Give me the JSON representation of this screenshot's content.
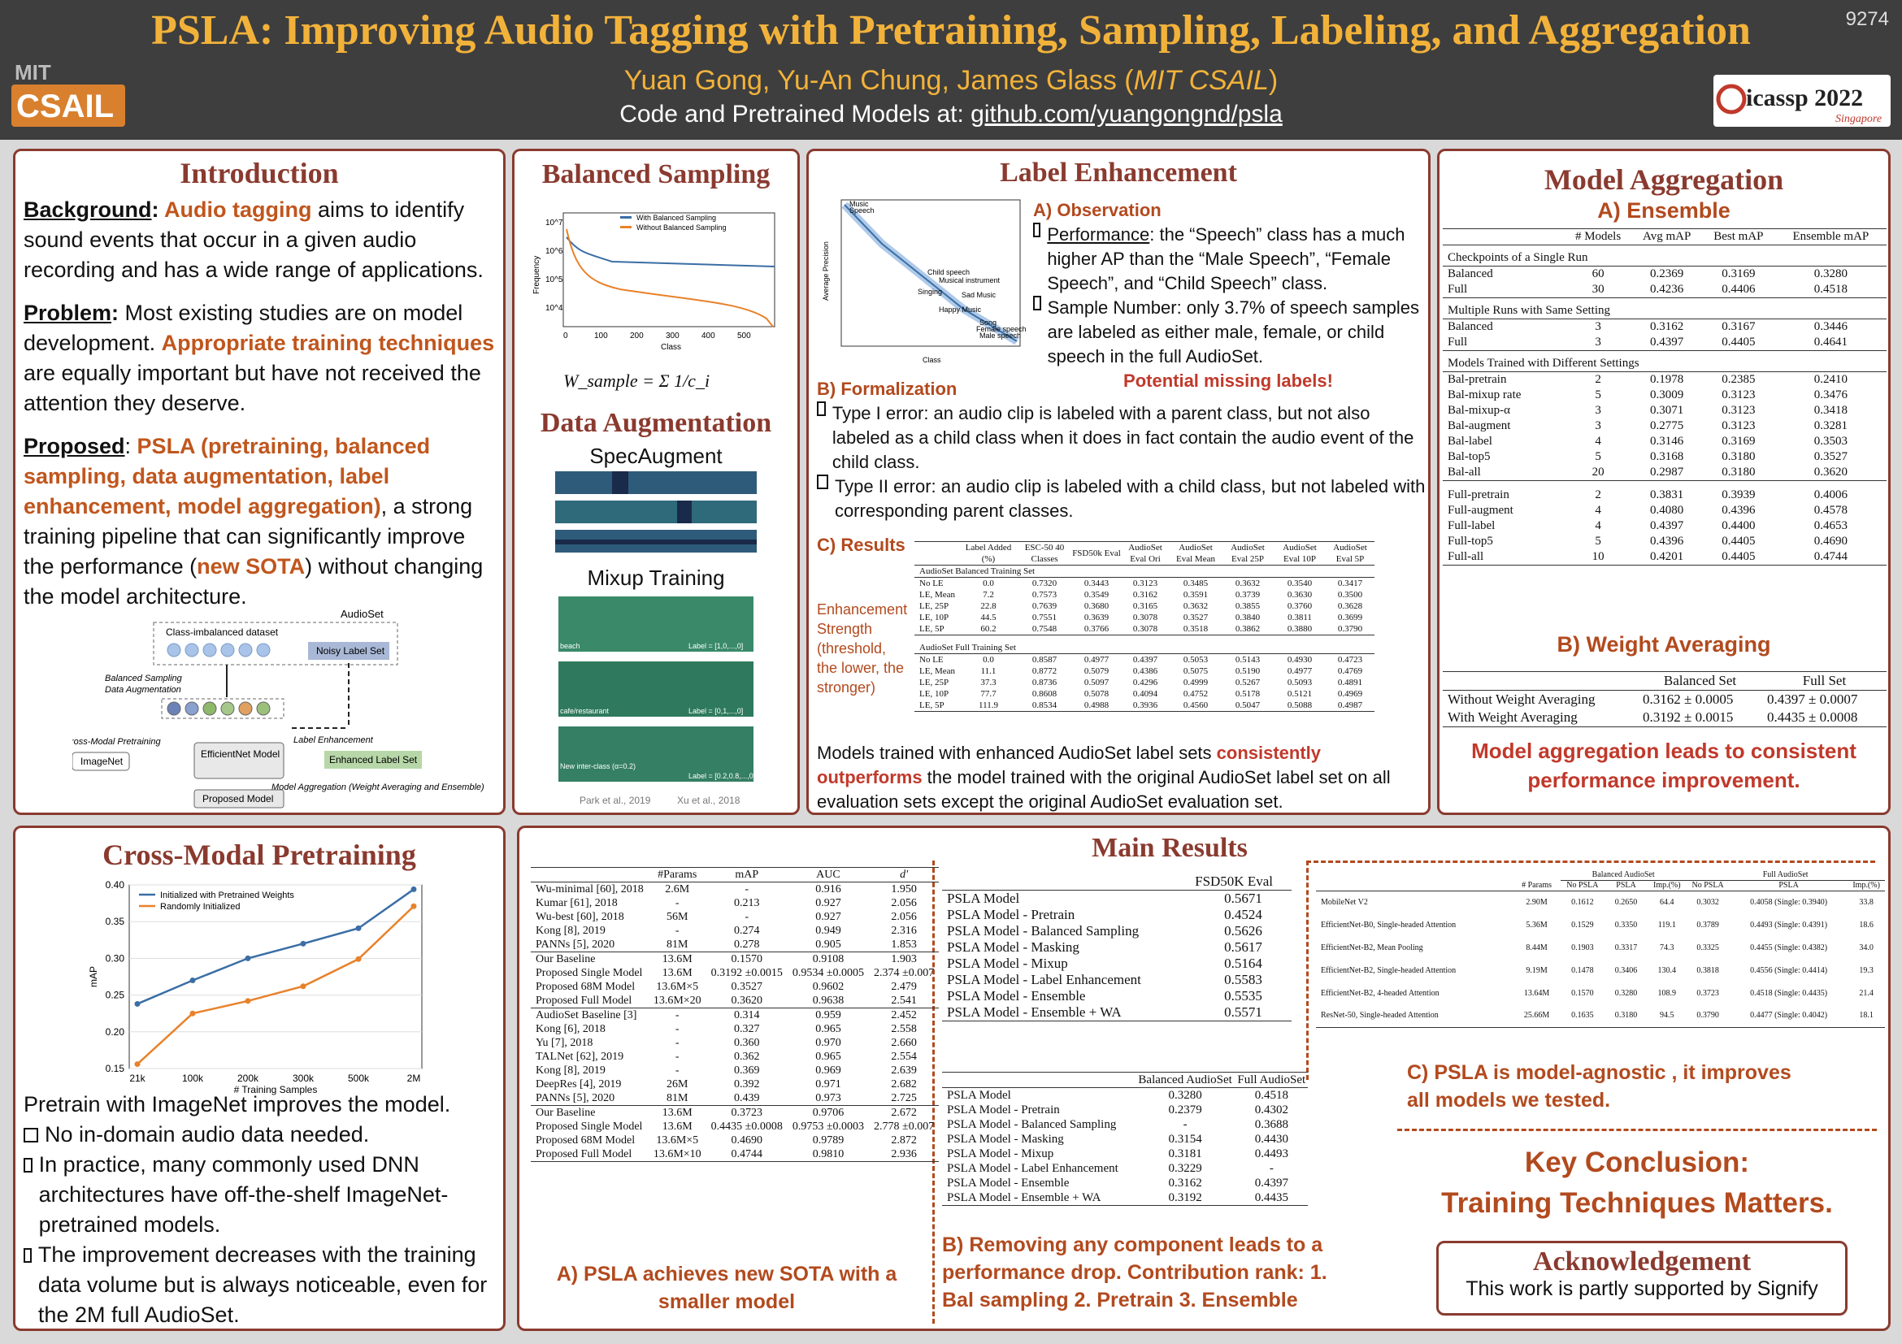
{
  "header": {
    "title": "PSLA: Improving Audio Tagging with Pretraining, Sampling, Labeling, and Aggregation",
    "authors": "Yuan Gong, Yu-An Chung, James Glass (",
    "affil": "MIT CSAIL",
    "authors_end": ")",
    "code_prefix": "Code and Pretrained Models at: ",
    "code_link": "github.com/yuangongnd/psla",
    "poster_number": "9274",
    "mit_logo": "MIT CSAIL",
    "conf_logo": "icassp 2022",
    "conf_city": "Singapore"
  },
  "intro": {
    "heading": "Introduction",
    "bg_label": "Background",
    "bg_hl": "Audio tagging",
    "bg_text": " aims to identify sound events that occur in a given audio recording and has a wide range of applications.",
    "prob_label": "Problem",
    "prob_text1": "Most existing studies are on model development. ",
    "prob_hl": "Appropriate training techniques",
    "prob_text2": " are equally important but have not received the attention they deserve.",
    "prop_label": "Proposed",
    "prop_hl": "PSLA (pretraining, balanced sampling, data augmentation, label enhancement, model aggregation)",
    "prop_text1": ", a strong training pipeline that can significantly improve the performance (",
    "prop_hl2": "new SOTA",
    "prop_text2": ") without changing the model architecture.",
    "diagram": {
      "audioset": "AudioSet",
      "class_imb": "Class-imbalanced dataset",
      "noisy": "Noisy Label Set",
      "bal_samp": "Balanced Sampling",
      "data_aug": "Data Augmentation",
      "cross_modal": "Cross-Modal Pretraining",
      "imagenet": "ImageNet",
      "effnet": "EfficientNet Model",
      "label_enh": "Label Enhancement",
      "enh_set": "Enhanced Label Set",
      "model_agg": "Model Aggregation (Weight Averaging and Ensemble)",
      "proposed": "Proposed Model"
    }
  },
  "balanced": {
    "heading": "Balanced Sampling",
    "legend_with": "With Balanced Sampling",
    "legend_without": "Without Balanced Sampling",
    "xlabel": "Class",
    "ylabel": "Frequency",
    "formula": "W_sample = Σ 1/c_i",
    "aug_heading": "Data Augmentation",
    "specaug": "SpecAugment",
    "mixup": "Mixup Training",
    "spec_labels": [
      "beach",
      "cafe/restaurant",
      "New inter-class (α=0.2)"
    ],
    "spec_values": [
      "Label = [1,0,...,0]",
      "Label = [0,1,...,0]",
      "Label = [0.2,0.8,...,0]"
    ],
    "cite1": "Park et al., 2019",
    "cite2": "Xu et al., 2018",
    "xticks": [
      "0",
      "100",
      "200",
      "300",
      "400",
      "500"
    ],
    "yticks": [
      "10^7",
      "10^6",
      "10^5",
      "10^4"
    ]
  },
  "label": {
    "heading": "Label Enhancement",
    "obs": "A) Observation",
    "perf_label": "Performance",
    "perf_text": ": the “Speech” class has a much higher AP than the “Male Speech”, “Female Speech”, and “Child Speech” class.",
    "samp_text": "Sample Number: only 3.7% of speech samples are labeled as either male, female, or child speech in the full AudioSet.",
    "missing": "Potential missing labels!",
    "form": "B) Formalization",
    "type1": "Type I error: an audio clip is labeled with a parent class, but not also labeled as a child class when it does in fact contain the audio event of the child class.",
    "type2": "Type II error: an audio clip is labeled with a child class, but not labeled with corresponding parent classes.",
    "results": "C) Results",
    "strength": "Enhancement Strength (threshold, the lower, the stronger)",
    "conclusion_a": "Models trained with enhanced AudioSet label sets ",
    "conclusion_hl": "consistently outperforms",
    "conclusion_b": " the model trained with the original AudioSet label set on all evaluation sets except the original AudioSet evaluation set.",
    "scatter_labels": [
      "Music",
      "Speech",
      "Child speech",
      "Musical instrument",
      "Singing",
      "Sad Music",
      "Happy Music",
      "Song",
      "Female speech",
      "Male speech"
    ],
    "scatter_ylabel": "Average Precision",
    "scatter_xlabel": "Class",
    "table_headers": [
      "Label Added (%)",
      "ESC-50 40 Classes",
      "FSD50k Eval",
      "AudioSet Eval Ori",
      "AudioSet Eval Mean",
      "AudioSet Eval 25P",
      "AudioSet Eval 10P",
      "AudioSet Eval 5P"
    ],
    "bal_title": "AudioSet Balanced Training Set",
    "full_title": "AudioSet Full Training Set",
    "bal_rows": [
      [
        "No LE",
        "0.0",
        "0.7320",
        "0.3443",
        "0.3123",
        "0.3485",
        "0.3632",
        "0.3540",
        "0.3417"
      ],
      [
        "LE, Mean",
        "7.2",
        "0.7573",
        "0.3549",
        "0.3162",
        "0.3591",
        "0.3739",
        "0.3630",
        "0.3500"
      ],
      [
        "LE, 25P",
        "22.8",
        "0.7639",
        "0.3680",
        "0.3165",
        "0.3632",
        "0.3855",
        "0.3760",
        "0.3628"
      ],
      [
        "LE, 10P",
        "44.5",
        "0.7551",
        "0.3639",
        "0.3078",
        "0.3527",
        "0.3840",
        "0.3811",
        "0.3699"
      ],
      [
        "LE, 5P",
        "60.2",
        "0.7548",
        "0.3766",
        "0.3078",
        "0.3518",
        "0.3862",
        "0.3880",
        "0.3790"
      ]
    ],
    "full_rows": [
      [
        "No LE",
        "0.0",
        "0.8587",
        "0.4977",
        "0.4397",
        "0.5053",
        "0.5143",
        "0.4930",
        "0.4723"
      ],
      [
        "LE, Mean",
        "11.1",
        "0.8772",
        "0.5079",
        "0.4386",
        "0.5075",
        "0.5190",
        "0.4977",
        "0.4769"
      ],
      [
        "LE, 25P",
        "37.3",
        "0.8736",
        "0.5097",
        "0.4296",
        "0.4999",
        "0.5267",
        "0.5093",
        "0.4891"
      ],
      [
        "LE, 10P",
        "77.7",
        "0.8608",
        "0.5078",
        "0.4094",
        "0.4752",
        "0.5178",
        "0.5121",
        "0.4969"
      ],
      [
        "LE, 5P",
        "111.9",
        "0.8534",
        "0.4988",
        "0.3936",
        "0.4560",
        "0.5047",
        "0.5088",
        "0.4987"
      ]
    ]
  },
  "agg": {
    "heading": "Model Aggregation",
    "ens": "A) Ensemble",
    "cols": [
      "# Models",
      "Avg mAP",
      "Best mAP",
      "Ensemble mAP"
    ],
    "g1": "Checkpoints of a Single Run",
    "r1": [
      [
        "Balanced",
        "60",
        "0.2369",
        "0.3169",
        "0.3280"
      ],
      [
        "Full",
        "30",
        "0.4236",
        "0.4406",
        "0.4518"
      ]
    ],
    "g2": "Multiple Runs with Same Setting",
    "r2": [
      [
        "Balanced",
        "3",
        "0.3162",
        "0.3167",
        "0.3446"
      ],
      [
        "Full",
        "3",
        "0.4397",
        "0.4405",
        "0.4641"
      ]
    ],
    "g3": "Models Trained with Different Settings",
    "r3": [
      [
        "Bal-pretrain",
        "2",
        "0.1978",
        "0.2385",
        "0.2410"
      ],
      [
        "Bal-mixup rate",
        "5",
        "0.3009",
        "0.3123",
        "0.3476"
      ],
      [
        "Bal-mixup-α",
        "3",
        "0.3071",
        "0.3123",
        "0.3418"
      ],
      [
        "Bal-augment",
        "3",
        "0.2775",
        "0.3123",
        "0.3281"
      ],
      [
        "Bal-label",
        "4",
        "0.3146",
        "0.3169",
        "0.3503"
      ],
      [
        "Bal-top5",
        "5",
        "0.3168",
        "0.3180",
        "0.3527"
      ],
      [
        "Bal-all",
        "20",
        "0.2987",
        "0.3180",
        "0.3620"
      ]
    ],
    "r4": [
      [
        "Full-pretrain",
        "2",
        "0.3831",
        "0.3939",
        "0.4006"
      ],
      [
        "Full-augment",
        "4",
        "0.4080",
        "0.4396",
        "0.4578"
      ],
      [
        "Full-label",
        "4",
        "0.4397",
        "0.4400",
        "0.4653"
      ],
      [
        "Full-top5",
        "5",
        "0.4396",
        "0.4405",
        "0.4690"
      ],
      [
        "Full-all",
        "10",
        "0.4201",
        "0.4405",
        "0.4744"
      ]
    ],
    "wa": "B) Weight Averaging",
    "wa_cols": [
      "Balanced Set",
      "Full Set"
    ],
    "wa_rows": [
      [
        "Without Weight Averaging",
        "0.3162 ± 0.0005",
        "0.4397 ± 0.0007"
      ],
      [
        "With Weight Averaging",
        "0.3192 ± 0.0015",
        "0.4435 ± 0.0008"
      ]
    ],
    "conclusion": "Model aggregation leads to consistent performance improvement."
  },
  "cross": {
    "heading": "Cross-Modal Pretraining",
    "legend_a": "Initialized with Pretrained Weights",
    "legend_b": "Randomly Initialized",
    "xlabel": "# Training Samples",
    "ylabel": "mAP",
    "intro": "Pretrain with ImageNet improves the model.",
    "p1": "No in-domain audio data needed.",
    "p2": "In practice, many commonly used DNN architectures have off-the-shelf ImageNet-pretrained models.",
    "p3": "The improvement decreases with the training data volume but is always noticeable, even for the 2M full AudioSet."
  },
  "chart_data": {
    "type": "line",
    "title": "",
    "xlabel": "# Training Samples",
    "ylabel": "mAP",
    "categories": [
      "21k",
      "100k",
      "200k",
      "300k",
      "500k",
      "2M"
    ],
    "ylim": [
      0.15,
      0.4
    ],
    "yticks": [
      "0.15",
      "0.20",
      "0.25",
      "0.30",
      "0.35",
      "0.40"
    ],
    "series": [
      {
        "name": "Initialized with Pretrained Weights",
        "color": "#3a6ea5",
        "values": [
          0.238,
          0.27,
          0.3,
          0.32,
          0.341,
          0.394
        ]
      },
      {
        "name": "Randomly Initialized",
        "color": "#e8822a",
        "values": [
          0.156,
          0.225,
          0.242,
          0.262,
          0.299,
          0.371
        ]
      }
    ]
  },
  "main": {
    "heading": "Main Results",
    "a_cols": [
      "#Params",
      "mAP",
      "AUC",
      "d'"
    ],
    "a_g1": [
      [
        "Wu-minimal [60], 2018",
        "2.6M",
        "-",
        "0.916",
        "1.950"
      ],
      [
        "Kumar [61], 2018",
        "-",
        "0.213",
        "0.927",
        "2.056"
      ],
      [
        "Wu-best [60], 2018",
        "56M",
        "-",
        "0.927",
        "2.056"
      ],
      [
        "Kong [8], 2019",
        "-",
        "0.274",
        "0.949",
        "2.316"
      ],
      [
        "PANNs [5], 2020",
        "81M",
        "0.278",
        "0.905",
        "1.853"
      ]
    ],
    "a_g2": [
      [
        "Our Baseline",
        "13.6M",
        "0.1570",
        "0.9108",
        "1.903"
      ],
      [
        "Proposed Single Model",
        "13.6M",
        "0.3192 ±0.0015",
        "0.9534 ±0.0005",
        "2.374 ±0.007"
      ],
      [
        "Proposed 68M Model",
        "13.6M×5",
        "0.3527",
        "0.9602",
        "2.479"
      ],
      [
        "Proposed Full Model",
        "13.6M×20",
        "0.3620",
        "0.9638",
        "2.541"
      ]
    ],
    "a_g3": [
      [
        "AudioSet Baseline [3]",
        "-",
        "0.314",
        "0.959",
        "2.452"
      ],
      [
        "Kong [6], 2018",
        "-",
        "0.327",
        "0.965",
        "2.558"
      ],
      [
        "Yu [7], 2018",
        "-",
        "0.360",
        "0.970",
        "2.660"
      ],
      [
        "TALNet [62], 2019",
        "-",
        "0.362",
        "0.965",
        "2.554"
      ],
      [
        "Kong [8], 2019",
        "-",
        "0.369",
        "0.969",
        "2.639"
      ],
      [
        "DeepRes [4], 2019",
        "26M",
        "0.392",
        "0.971",
        "2.682"
      ],
      [
        "PANNs [5], 2020",
        "81M",
        "0.439",
        "0.973",
        "2.725"
      ]
    ],
    "a_g4": [
      [
        "Our Baseline",
        "13.6M",
        "0.3723",
        "0.9706",
        "2.672"
      ],
      [
        "Proposed Single Model",
        "13.6M",
        "0.4435 ±0.0008",
        "0.9753 ±0.0003",
        "2.778 ±0.007"
      ],
      [
        "Proposed 68M Model",
        "13.6M×5",
        "0.4690",
        "0.9789",
        "2.872"
      ],
      [
        "Proposed Full Model",
        "13.6M×10",
        "0.4744",
        "0.9810",
        "2.936"
      ]
    ],
    "a_caption": "A) PSLA achieves new SOTA with a smaller model",
    "fsd_col": "FSD50K Eval",
    "fsd_rows": [
      [
        "PSLA Model",
        "0.5671"
      ],
      [
        "PSLA Model - Pretrain",
        "0.4524"
      ],
      [
        "PSLA Model - Balanced Sampling",
        "0.5626"
      ],
      [
        "PSLA Model - Masking",
        "0.5617"
      ],
      [
        "PSLA Model - Mixup",
        "0.5164"
      ],
      [
        "PSLA Model - Label Enhancement",
        "0.5583"
      ],
      [
        "PSLA Model - Ensemble",
        "0.5535"
      ],
      [
        "PSLA Model - Ensemble + WA",
        "0.5571"
      ]
    ],
    "abl_cols": [
      "Balanced AudioSet",
      "Full AudioSet"
    ],
    "abl_rows": [
      [
        "PSLA Model",
        "0.3280",
        "0.4518"
      ],
      [
        "PSLA Model - Pretrain",
        "0.2379",
        "0.4302"
      ],
      [
        "PSLA Model - Balanced Sampling",
        "-",
        "0.3688"
      ],
      [
        "PSLA Model - Masking",
        "0.3154",
        "0.4430"
      ],
      [
        "PSLA Model - Mixup",
        "0.3181",
        "0.4493"
      ],
      [
        "PSLA Model - Label Enhancement",
        "0.3229",
        "-"
      ],
      [
        "PSLA Model - Ensemble",
        "0.3162",
        "0.4397"
      ],
      [
        "PSLA Model - Ensemble + WA",
        "0.3192",
        "0.4435"
      ]
    ],
    "b_caption": "B) Removing any component leads to a performance drop. Contribution rank: 1. Bal sampling 2. Pretrain 3. Ensemble",
    "c_cols": [
      "# Params",
      "No PSLA",
      "PSLA",
      "Imp.(%)",
      "No PSLA",
      "PSLA",
      "Imp.(%)"
    ],
    "c_group1": "Balanced AudioSet",
    "c_group2": "Full AudioSet",
    "c_rows": [
      [
        "MobileNet V2",
        "2.90M",
        "0.1612",
        "0.2650",
        "64.4",
        "0.3032",
        "0.4058 (Single: 0.3940)",
        "33.8"
      ],
      [
        "EfficientNet-B0, Single-headed Attention",
        "5.36M",
        "0.1529",
        "0.3350",
        "119.1",
        "0.3789",
        "0.4493 (Single: 0.4391)",
        "18.6"
      ],
      [
        "EfficientNet-B2, Mean Pooling",
        "8.44M",
        "0.1903",
        "0.3317",
        "74.3",
        "0.3325",
        "0.4455 (Single: 0.4382)",
        "34.0"
      ],
      [
        "EfficientNet-B2, Single-headed Attention",
        "9.19M",
        "0.1478",
        "0.3406",
        "130.4",
        "0.3818",
        "0.4556 (Single: 0.4414)",
        "19.3"
      ],
      [
        "EfficientNet-B2, 4-headed Attention",
        "13.64M",
        "0.1570",
        "0.3280",
        "108.9",
        "0.3723",
        "0.4518 (Single: 0.4435)",
        "21.4"
      ],
      [
        "ResNet-50, Single-headed Attention",
        "25.66M",
        "0.1635",
        "0.3180",
        "94.5",
        "0.3790",
        "0.4477 (Single: 0.4042)",
        "18.1"
      ]
    ],
    "c_caption": "C) PSLA is model-agnostic , it improves all models we tested.",
    "key1": "Key Conclusion:",
    "key2": "Training Techniques Matters",
    "ack_heading": "Acknowledgement",
    "ack_text": "This work is partly supported by Signify"
  }
}
